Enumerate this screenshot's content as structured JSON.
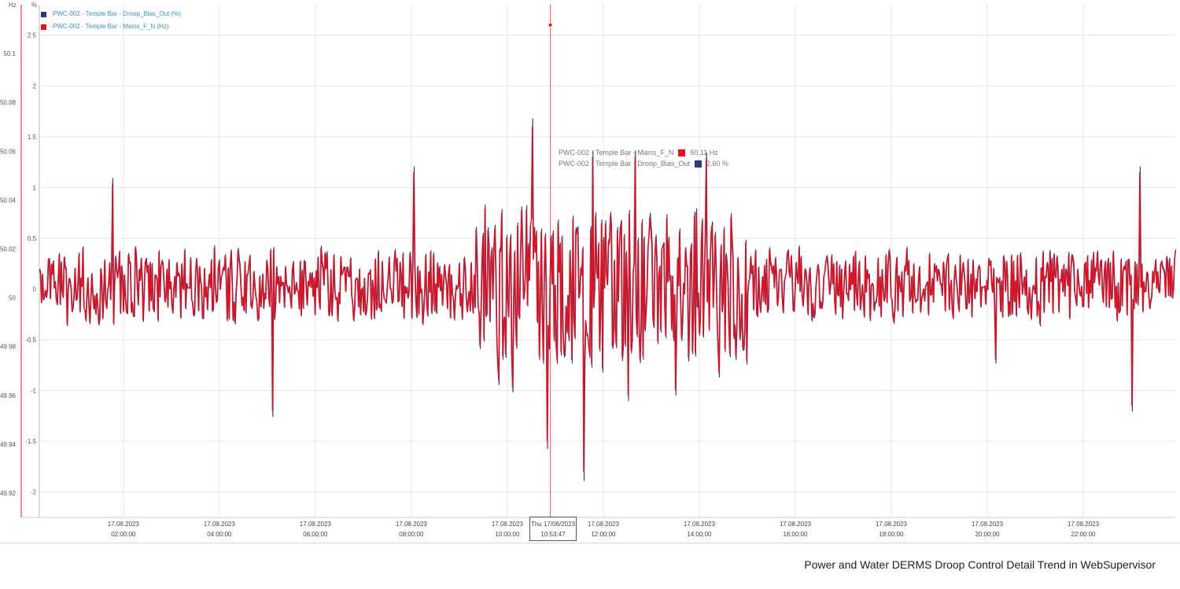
{
  "colors": {
    "red": "#e8101c",
    "navy": "#283a7a",
    "grid": "#e6e6e6",
    "axisRed": "#d6183a"
  },
  "legend": [
    {
      "label": "PWC-002 - Temple Bar - Droop_Bias_Out (%)",
      "color": "#283a7a"
    },
    {
      "label": "PWC-002 - Temple Bar - Mains_F_N (Hz)",
      "color": "#e8101c"
    }
  ],
  "axes": {
    "left_unit": "Hz",
    "right_unit": "%"
  },
  "tooltip": {
    "rows": [
      {
        "label": "PWC-002 - Temple Bar - Mains_F_N",
        "value": "50.11 Hz",
        "color": "#e8101c"
      },
      {
        "label": "PWC-002 - Temple Bar - Droop_Bias_Out",
        "value": "2.60 %",
        "color": "#283a7a"
      }
    ]
  },
  "cursor": {
    "day_date": "Thu 17/08/2023",
    "time": "10:53:47"
  },
  "caption": "Power and Water DERMS Droop Control Detail Trend in WebSupervisor",
  "chart_data": {
    "type": "line",
    "left_axis": {
      "unit": "Hz",
      "ylim": [
        49.91,
        50.12
      ],
      "ticks": [
        "49.92",
        "49.94",
        "49.96",
        "49.98",
        "50",
        "50.02",
        "50.04",
        "50.06",
        "50.08",
        "50.1"
      ]
    },
    "right_axis": {
      "unit": "%",
      "ylim": [
        -2.25,
        2.8
      ],
      "ticks": [
        "-2",
        "-1.5",
        "-1",
        "-0.5",
        "0",
        "0.5",
        "1",
        "1.5",
        "2",
        "2.5"
      ]
    },
    "x_ticks": [
      {
        "date": "17.08.2023",
        "time": "02:00:00"
      },
      {
        "date": "17.08.2023",
        "time": "04:00:00"
      },
      {
        "date": "17.08.2023",
        "time": "06:00:00"
      },
      {
        "date": "17.08.2023",
        "time": "08:00:00"
      },
      {
        "date": "17.08.2023",
        "time": "10:00:00"
      },
      {
        "date": "17.08.2023",
        "time": "12:00:00"
      },
      {
        "date": "17.08.2023",
        "time": "14:00:00"
      },
      {
        "date": "17.08.2023",
        "time": "16:00:00"
      },
      {
        "date": "17.08.2023",
        "time": "18:00:00"
      },
      {
        "date": "17.08.2023",
        "time": "20:00:00"
      },
      {
        "date": "17.08.2023",
        "time": "22:00:00"
      }
    ],
    "x_range": [
      "17.08.2023 00:15:00",
      "17.08.2023 23:55:00"
    ],
    "cursor_time": "17.08.2023 10:53:47",
    "series": [
      {
        "name": "PWC-002 - Temple Bar - Droop_Bias_Out (%)",
        "axis": "right",
        "color": "#283a7a",
        "range": [
          -2.0,
          2.6
        ]
      },
      {
        "name": "PWC-002 - Temple Bar - Mains_F_N (Hz)",
        "axis": "left",
        "color": "#e8101c",
        "range": [
          49.921,
          50.109
        ]
      }
    ],
    "grid": true
  }
}
